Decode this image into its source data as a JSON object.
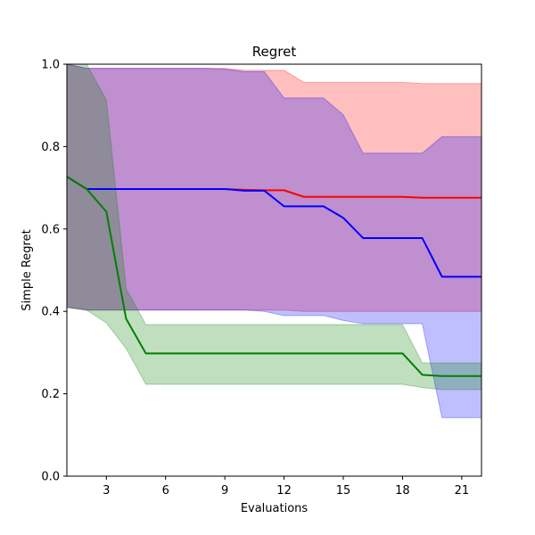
{
  "chart_data": {
    "type": "line",
    "title": "Regret",
    "xlabel": "Evaluations",
    "ylabel": "Simple Regret",
    "xlim": [
      1,
      22
    ],
    "ylim": [
      0.0,
      1.0
    ],
    "xticks": [
      3,
      6,
      9,
      12,
      15,
      18,
      21
    ],
    "yticks": [
      "0.0",
      "0.2",
      "0.4",
      "0.6",
      "0.8",
      "1.0"
    ],
    "grid": false,
    "x": [
      1,
      2,
      3,
      4,
      5,
      6,
      7,
      8,
      9,
      10,
      11,
      12,
      13,
      14,
      15,
      16,
      17,
      18,
      19,
      20,
      21,
      22
    ],
    "series": [
      {
        "color": "#ff0000",
        "band_color": "#ff0000",
        "band_opacity": 0.25,
        "values": [
          0.727,
          0.697,
          0.697,
          0.697,
          0.697,
          0.697,
          0.697,
          0.697,
          0.697,
          0.695,
          0.694,
          0.694,
          0.678,
          0.678,
          0.678,
          0.678,
          0.678,
          0.678,
          0.676,
          0.676,
          0.676,
          0.676
        ],
        "lower": [
          0.41,
          0.403,
          0.403,
          0.403,
          0.403,
          0.403,
          0.403,
          0.403,
          0.403,
          0.403,
          0.403,
          0.403,
          0.4,
          0.4,
          0.4,
          0.4,
          0.4,
          0.4,
          0.4,
          0.4,
          0.4,
          0.4
        ],
        "upper": [
          1.0,
          0.99,
          0.99,
          0.99,
          0.99,
          0.99,
          0.99,
          0.99,
          0.99,
          0.985,
          0.985,
          0.985,
          0.956,
          0.956,
          0.956,
          0.956,
          0.956,
          0.956,
          0.953,
          0.953,
          0.953,
          0.953
        ]
      },
      {
        "color": "#0000ff",
        "band_color": "#0000ff",
        "band_opacity": 0.25,
        "values": [
          0.727,
          0.697,
          0.697,
          0.697,
          0.697,
          0.697,
          0.697,
          0.697,
          0.697,
          0.693,
          0.693,
          0.655,
          0.655,
          0.655,
          0.627,
          0.578,
          0.578,
          0.578,
          0.578,
          0.484,
          0.484,
          0.484
        ],
        "lower": [
          0.41,
          0.403,
          0.403,
          0.403,
          0.403,
          0.403,
          0.403,
          0.403,
          0.403,
          0.403,
          0.4,
          0.39,
          0.39,
          0.39,
          0.378,
          0.37,
          0.37,
          0.37,
          0.37,
          0.142,
          0.142,
          0.142
        ],
        "upper": [
          1.0,
          0.99,
          0.99,
          0.99,
          0.99,
          0.99,
          0.99,
          0.99,
          0.988,
          0.982,
          0.982,
          0.918,
          0.918,
          0.918,
          0.877,
          0.784,
          0.784,
          0.784,
          0.784,
          0.824,
          0.824,
          0.824
        ]
      },
      {
        "color": "#008000",
        "band_color": "#008000",
        "band_opacity": 0.25,
        "values": [
          0.727,
          0.697,
          0.642,
          0.382,
          0.298,
          0.298,
          0.298,
          0.298,
          0.298,
          0.298,
          0.298,
          0.298,
          0.298,
          0.298,
          0.298,
          0.298,
          0.298,
          0.298,
          0.246,
          0.243,
          0.243,
          0.243
        ],
        "lower": [
          0.41,
          0.403,
          0.372,
          0.31,
          0.223,
          0.223,
          0.223,
          0.223,
          0.223,
          0.223,
          0.223,
          0.223,
          0.223,
          0.223,
          0.223,
          0.223,
          0.223,
          0.223,
          0.215,
          0.21,
          0.21,
          0.21
        ],
        "upper": [
          1.0,
          1.0,
          0.913,
          0.455,
          0.368,
          0.368,
          0.368,
          0.368,
          0.368,
          0.368,
          0.368,
          0.368,
          0.368,
          0.368,
          0.368,
          0.368,
          0.368,
          0.368,
          0.275,
          0.275,
          0.275,
          0.275
        ]
      }
    ]
  }
}
